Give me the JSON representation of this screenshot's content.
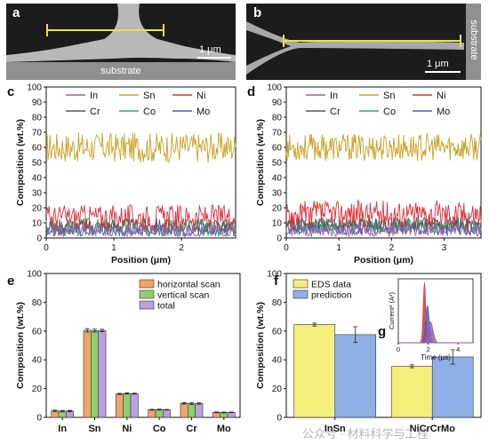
{
  "panels": {
    "a": {
      "letter": "a",
      "scale_label": "1 μm",
      "substrate_label": "substrate"
    },
    "b": {
      "letter": "b",
      "scale_label": "1 μm",
      "substrate_label": "substrate"
    },
    "c": {
      "letter": "c"
    },
    "d": {
      "letter": "d"
    },
    "e": {
      "letter": "e"
    },
    "f": {
      "letter": "f"
    },
    "g": {
      "letter": "g"
    }
  },
  "colors": {
    "In": "#9a5fb0",
    "Sn": "#c9a227",
    "Ni": "#e0303a",
    "Cr": "#555555",
    "Co": "#2aa86a",
    "Mo": "#4b5fb5",
    "horizontal": "#f0a36a",
    "vertical": "#8dd06a",
    "total": "#b9a0de",
    "eds": "#f4ef7a",
    "prediction": "#8fb0e6"
  },
  "watermark": "公众号 · 材料科学与工程",
  "chart_data": [
    {
      "id": "c",
      "type": "line",
      "xlabel": "Position (μm)",
      "ylabel": "Composition (wt.%)",
      "xlim": [
        0,
        2.8
      ],
      "ylim": [
        0,
        100
      ],
      "xticks": [
        0,
        1,
        2
      ],
      "yticks": [
        0,
        10,
        20,
        30,
        40,
        50,
        60,
        70,
        80,
        90,
        100
      ],
      "legend": "top",
      "n_points": 200,
      "series": [
        {
          "name": "In",
          "mean": 5,
          "amp": 4
        },
        {
          "name": "Sn",
          "mean": 60,
          "amp": 10
        },
        {
          "name": "Ni",
          "mean": 14,
          "amp": 8
        },
        {
          "name": "Cr",
          "mean": 8,
          "amp": 5
        },
        {
          "name": "Co",
          "mean": 7,
          "amp": 6
        },
        {
          "name": "Mo",
          "mean": 5,
          "amp": 4
        }
      ]
    },
    {
      "id": "d",
      "type": "line",
      "xlabel": "Position (μm)",
      "ylabel": "Composition (wt.%)",
      "xlim": [
        0,
        3.7
      ],
      "ylim": [
        0,
        100
      ],
      "xticks": [
        0,
        1,
        2,
        3
      ],
      "yticks": [
        0,
        10,
        20,
        30,
        40,
        50,
        60,
        70,
        80,
        90,
        100
      ],
      "legend": "top",
      "n_points": 240,
      "series": [
        {
          "name": "In",
          "mean": 5,
          "amp": 4
        },
        {
          "name": "Sn",
          "mean": 60,
          "amp": 9
        },
        {
          "name": "Ni",
          "mean": 16,
          "amp": 9
        },
        {
          "name": "Cr",
          "mean": 9,
          "amp": 5
        },
        {
          "name": "Co",
          "mean": 8,
          "amp": 5
        },
        {
          "name": "Mo",
          "mean": 6,
          "amp": 4
        }
      ]
    },
    {
      "id": "e",
      "type": "bar",
      "ylabel": "Composition (wt.%)",
      "ylim": [
        0,
        100
      ],
      "yticks": [
        0,
        20,
        40,
        60,
        80,
        100
      ],
      "categories": [
        "In",
        "Sn",
        "Ni",
        "Co",
        "Cr",
        "Mo"
      ],
      "legend": "top-right",
      "series": [
        {
          "name": "horizontal scan",
          "values": [
            4.5,
            60.5,
            16.3,
            5.3,
            9.8,
            3.5
          ],
          "errors": [
            0.6,
            1.2,
            0.4,
            0.3,
            0.5,
            0.3
          ]
        },
        {
          "name": "vertical scan",
          "values": [
            4.3,
            60.3,
            16.6,
            5.4,
            9.5,
            3.4
          ],
          "errors": [
            0.5,
            1.0,
            0.4,
            0.3,
            0.6,
            0.3
          ]
        },
        {
          "name": "total",
          "values": [
            4.4,
            60.4,
            16.5,
            5.3,
            9.6,
            3.5
          ],
          "errors": [
            0.5,
            0.8,
            0.3,
            0.2,
            0.5,
            0.2
          ]
        }
      ]
    },
    {
      "id": "f",
      "type": "bar",
      "ylabel": "Composition (wt.%)",
      "ylim": [
        0,
        100
      ],
      "yticks": [
        0,
        20,
        40,
        60,
        80,
        100
      ],
      "categories": [
        "InSn",
        "NiCrCrMo"
      ],
      "legend": "top-left",
      "series": [
        {
          "name": "EDS data",
          "values": [
            64.5,
            35.5
          ],
          "errors": [
            1.0,
            1.0
          ]
        },
        {
          "name": "prediction",
          "values": [
            57.5,
            42.0
          ],
          "errors": [
            5.5,
            5.0
          ]
        }
      ]
    },
    {
      "id": "g",
      "type": "line",
      "xlabel": "Time (μs)",
      "ylabel": "Current² (A²)",
      "xlim": [
        0,
        5
      ],
      "xticks": [
        0,
        2,
        4
      ],
      "peaks": [
        {
          "color": "#e0303a",
          "center": 1.75,
          "height": 1.0,
          "width": 0.12
        },
        {
          "color": "#4b5fb5",
          "center": 1.95,
          "height": 0.62,
          "width": 0.18
        },
        {
          "color": "#9a5fb0",
          "center": 2.15,
          "height": 0.35,
          "width": 0.25
        }
      ]
    }
  ]
}
